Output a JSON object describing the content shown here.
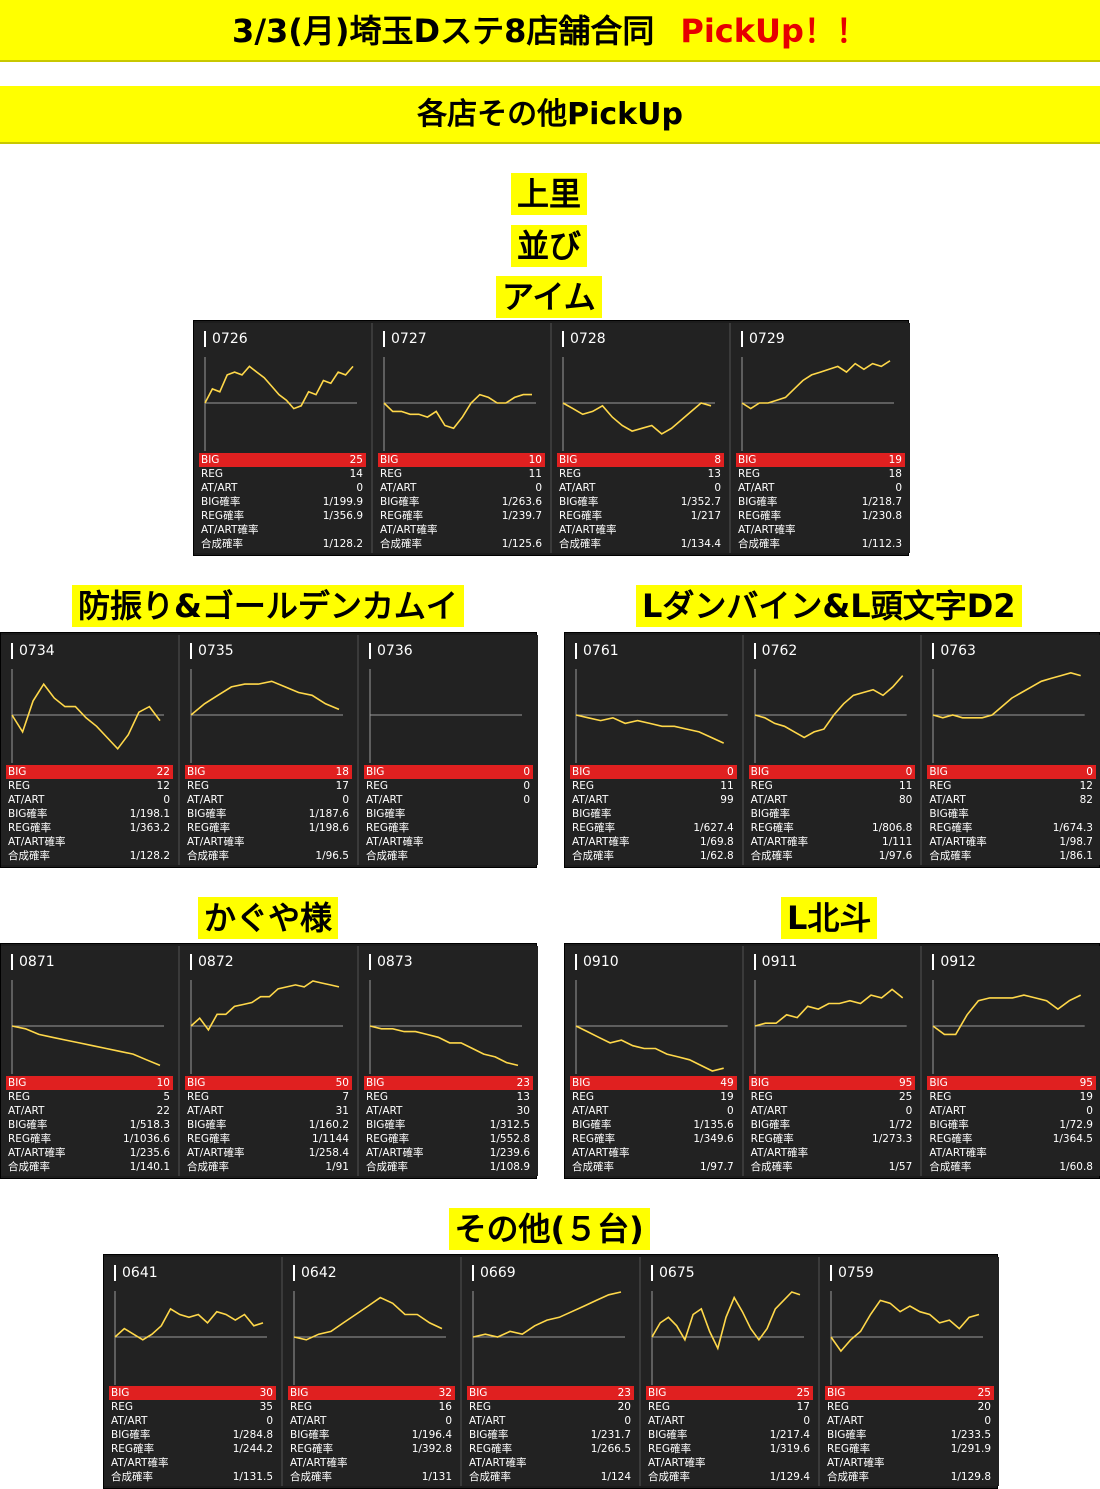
{
  "header": {
    "title": "3/3(月)埼玉Dステ8店舗合同",
    "pickup": "PickUp！！",
    "subtitle": "各店その他PickUp"
  },
  "colors": {
    "banner": "#ffff00",
    "pickup": "#e60000",
    "line": "#ffd84a",
    "big_row": "#e02020",
    "card_bg": "#222222"
  },
  "stat_labels": [
    "BIG",
    "REG",
    "AT/ART",
    "BIG確率",
    "REG確率",
    "AT/ART確率",
    "合成確率"
  ],
  "groups": [
    {
      "labels": [
        "上里",
        "並び",
        "アイム"
      ],
      "machines": [
        {
          "id": "0726",
          "stats": [
            "25",
            "14",
            "0",
            "1/199.9",
            "1/356.9",
            "",
            "1/128.2"
          ]
        },
        {
          "id": "0727",
          "stats": [
            "10",
            "11",
            "0",
            "1/263.6",
            "1/239.7",
            "",
            "1/125.6"
          ]
        },
        {
          "id": "0728",
          "stats": [
            "8",
            "13",
            "0",
            "1/352.7",
            "1/217",
            "",
            "1/134.4"
          ]
        },
        {
          "id": "0729",
          "stats": [
            "19",
            "18",
            "0",
            "1/218.7",
            "1/230.8",
            "",
            "1/112.3"
          ]
        }
      ]
    },
    {
      "labels": [
        "防振り&ゴールデンカムイ"
      ],
      "machines": [
        {
          "id": "0734",
          "stats": [
            "22",
            "12",
            "0",
            "1/198.1",
            "1/363.2",
            "",
            "1/128.2"
          ]
        },
        {
          "id": "0735",
          "stats": [
            "18",
            "17",
            "0",
            "1/187.6",
            "1/198.6",
            "",
            "1/96.5"
          ]
        },
        {
          "id": "0736",
          "stats": [
            "0",
            "0",
            "0",
            "",
            "",
            "",
            ""
          ]
        }
      ]
    },
    {
      "labels": [
        "Lダンバイン&L頭文字D2"
      ],
      "machines": [
        {
          "id": "0761",
          "stats": [
            "0",
            "11",
            "99",
            "",
            "1/627.4",
            "1/69.8",
            "1/62.8"
          ]
        },
        {
          "id": "0762",
          "stats": [
            "0",
            "11",
            "80",
            "",
            "1/806.8",
            "1/111",
            "1/97.6"
          ]
        },
        {
          "id": "0763",
          "stats": [
            "0",
            "12",
            "82",
            "",
            "1/674.3",
            "1/98.7",
            "1/86.1"
          ]
        }
      ]
    },
    {
      "labels": [
        "かぐや様"
      ],
      "machines": [
        {
          "id": "0871",
          "stats": [
            "10",
            "5",
            "22",
            "1/518.3",
            "1/1036.6",
            "1/235.6",
            "1/140.1"
          ]
        },
        {
          "id": "0872",
          "stats": [
            "50",
            "7",
            "31",
            "1/160.2",
            "1/1144",
            "1/258.4",
            "1/91"
          ]
        },
        {
          "id": "0873",
          "stats": [
            "23",
            "13",
            "30",
            "1/312.5",
            "1/552.8",
            "1/239.6",
            "1/108.9"
          ]
        }
      ]
    },
    {
      "labels": [
        "L北斗"
      ],
      "machines": [
        {
          "id": "0910",
          "stats": [
            "49",
            "19",
            "0",
            "1/135.6",
            "1/349.6",
            "",
            "1/97.7"
          ]
        },
        {
          "id": "0911",
          "stats": [
            "95",
            "25",
            "0",
            "1/72",
            "1/273.3",
            "",
            "1/57"
          ]
        },
        {
          "id": "0912",
          "stats": [
            "95",
            "19",
            "0",
            "1/72.9",
            "1/364.5",
            "",
            "1/60.8"
          ]
        }
      ]
    },
    {
      "labels": [
        "その他(５台)"
      ],
      "machines": [
        {
          "id": "0641",
          "stats": [
            "30",
            "35",
            "0",
            "1/284.8",
            "1/244.2",
            "",
            "1/131.5"
          ]
        },
        {
          "id": "0642",
          "stats": [
            "32",
            "16",
            "0",
            "1/196.4",
            "1/392.8",
            "",
            "1/131"
          ]
        },
        {
          "id": "0669",
          "stats": [
            "23",
            "20",
            "0",
            "1/231.7",
            "1/266.5",
            "",
            "1/124"
          ]
        },
        {
          "id": "0675",
          "stats": [
            "25",
            "17",
            "0",
            "1/217.4",
            "1/319.6",
            "",
            "1/129.4"
          ]
        },
        {
          "id": "0759",
          "stats": [
            "25",
            "20",
            "0",
            "1/233.5",
            "1/291.9",
            "",
            "1/129.8"
          ]
        }
      ]
    }
  ],
  "chart_data": [
    {
      "type": "line",
      "machine": "0726",
      "y": [
        0,
        0.5,
        0.4,
        1.0,
        1.1,
        1.0,
        1.3,
        1.1,
        0.9,
        0.6,
        0.3,
        0.1,
        -0.2,
        -0.1,
        0.4,
        0.3,
        0.8,
        0.7,
        1.1,
        1.0,
        1.3
      ]
    },
    {
      "type": "line",
      "machine": "0727",
      "y": [
        0,
        -0.3,
        -0.3,
        -0.4,
        -0.4,
        -0.5,
        -0.3,
        -0.8,
        -0.9,
        -0.5,
        0,
        0.3,
        0.2,
        0,
        0,
        0.2,
        0.3,
        0.3
      ]
    },
    {
      "type": "line",
      "machine": "0728",
      "y": [
        0,
        -0.2,
        -0.4,
        -0.3,
        -0.1,
        -0.5,
        -0.8,
        -1.0,
        -0.9,
        -0.8,
        -1.1,
        -0.9,
        -0.6,
        -0.3,
        0,
        -0.1
      ]
    },
    {
      "type": "line",
      "machine": "0729",
      "y": [
        0,
        -0.2,
        0,
        0,
        0.1,
        0.2,
        0.5,
        0.8,
        1.0,
        1.1,
        1.2,
        1.3,
        1.1,
        1.4,
        1.2,
        1.4,
        1.3,
        1.5
      ]
    },
    {
      "type": "line",
      "machine": "0734",
      "y": [
        0,
        -0.6,
        0.5,
        1.1,
        0.6,
        0.3,
        0.3,
        -0.1,
        -0.4,
        -0.8,
        -1.2,
        -0.7,
        0.1,
        0.3,
        -0.2
      ]
    },
    {
      "type": "line",
      "machine": "0735",
      "y": [
        0,
        0.4,
        0.7,
        1.0,
        1.1,
        1.1,
        1.2,
        1.0,
        0.8,
        0.7,
        0.4,
        0.2
      ]
    },
    {
      "type": "line",
      "machine": "0736",
      "y": []
    },
    {
      "type": "line",
      "machine": "0761",
      "y": [
        0,
        -0.1,
        -0.2,
        -0.1,
        -0.3,
        -0.2,
        -0.3,
        -0.4,
        -0.4,
        -0.5,
        -0.6,
        -0.8,
        -1.0
      ]
    },
    {
      "type": "line",
      "machine": "0762",
      "y": [
        0,
        -0.1,
        -0.3,
        -0.4,
        -0.6,
        -0.8,
        -0.6,
        -0.5,
        0,
        0.4,
        0.7,
        0.8,
        0.9,
        0.7,
        1.0,
        1.4
      ]
    },
    {
      "type": "line",
      "machine": "0763",
      "y": [
        0,
        -0.1,
        0,
        -0.1,
        -0.1,
        -0.1,
        0,
        0.3,
        0.6,
        0.8,
        1.0,
        1.2,
        1.3,
        1.4,
        1.5,
        1.4
      ]
    },
    {
      "type": "line",
      "machine": "0871",
      "y": [
        0,
        -0.1,
        -0.3,
        -0.4,
        -0.5,
        -0.6,
        -0.7,
        -0.8,
        -0.9,
        -1.0,
        -1.2,
        -1.4
      ]
    },
    {
      "type": "line",
      "machine": "0872",
      "y": [
        0,
        0.4,
        -0.2,
        0.6,
        0.6,
        1.0,
        1.1,
        1.2,
        1.5,
        1.5,
        1.9,
        2.0,
        2.1,
        2.0,
        2.3,
        2.2,
        2.1,
        2.0
      ]
    },
    {
      "type": "line",
      "machine": "0873",
      "y": [
        0,
        -0.1,
        -0.1,
        -0.2,
        -0.2,
        -0.3,
        -0.4,
        -0.6,
        -0.6,
        -0.8,
        -1.0,
        -1.1,
        -1.3,
        -1.4
      ]
    },
    {
      "type": "line",
      "machine": "0910",
      "y": [
        0,
        -0.2,
        -0.4,
        -0.6,
        -0.5,
        -0.7,
        -0.8,
        -0.8,
        -1.0,
        -1.1,
        -1.2,
        -1.4,
        -1.6,
        -1.5
      ]
    },
    {
      "type": "line",
      "machine": "0911",
      "y": [
        0,
        0.1,
        0.1,
        0.4,
        0.3,
        0.7,
        0.6,
        0.8,
        0.8,
        0.9,
        0.8,
        1.1,
        1.0,
        1.3,
        1.0
      ]
    },
    {
      "type": "line",
      "machine": "0912",
      "y": [
        0,
        -0.3,
        -0.3,
        0.4,
        0.9,
        1.0,
        1.0,
        1.0,
        1.1,
        1.0,
        0.9,
        0.6,
        0.9,
        1.1
      ]
    },
    {
      "type": "line",
      "machine": "0641",
      "y": [
        0,
        0.3,
        0.1,
        -0.1,
        0.1,
        0.4,
        1.0,
        0.8,
        0.7,
        0.8,
        0.5,
        0.9,
        0.8,
        0.6,
        0.8,
        0.4,
        0.5
      ]
    },
    {
      "type": "line",
      "machine": "0642",
      "y": [
        0,
        -0.1,
        0.1,
        0.2,
        0.5,
        0.8,
        1.1,
        1.4,
        1.2,
        0.8,
        0.8,
        0.5,
        0.3
      ]
    },
    {
      "type": "line",
      "machine": "0669",
      "y": [
        0,
        0.1,
        0,
        0.2,
        0.1,
        0.4,
        0.6,
        0.7,
        0.9,
        1.1,
        1.3,
        1.5,
        1.6
      ]
    },
    {
      "type": "line",
      "machine": "0675",
      "y": [
        0,
        0.5,
        0.7,
        0.4,
        -0.1,
        0.8,
        1.0,
        0.2,
        -0.4,
        0.7,
        1.4,
        0.9,
        0.3,
        -0.1,
        0.3,
        1.0,
        1.3,
        1.6,
        1.5
      ]
    },
    {
      "type": "line",
      "machine": "0759",
      "y": [
        0,
        -0.5,
        -0.1,
        0.2,
        0.8,
        1.3,
        1.2,
        0.9,
        1.1,
        0.9,
        0.8,
        0.5,
        0.6,
        0.3,
        0.7,
        0.8
      ]
    }
  ]
}
